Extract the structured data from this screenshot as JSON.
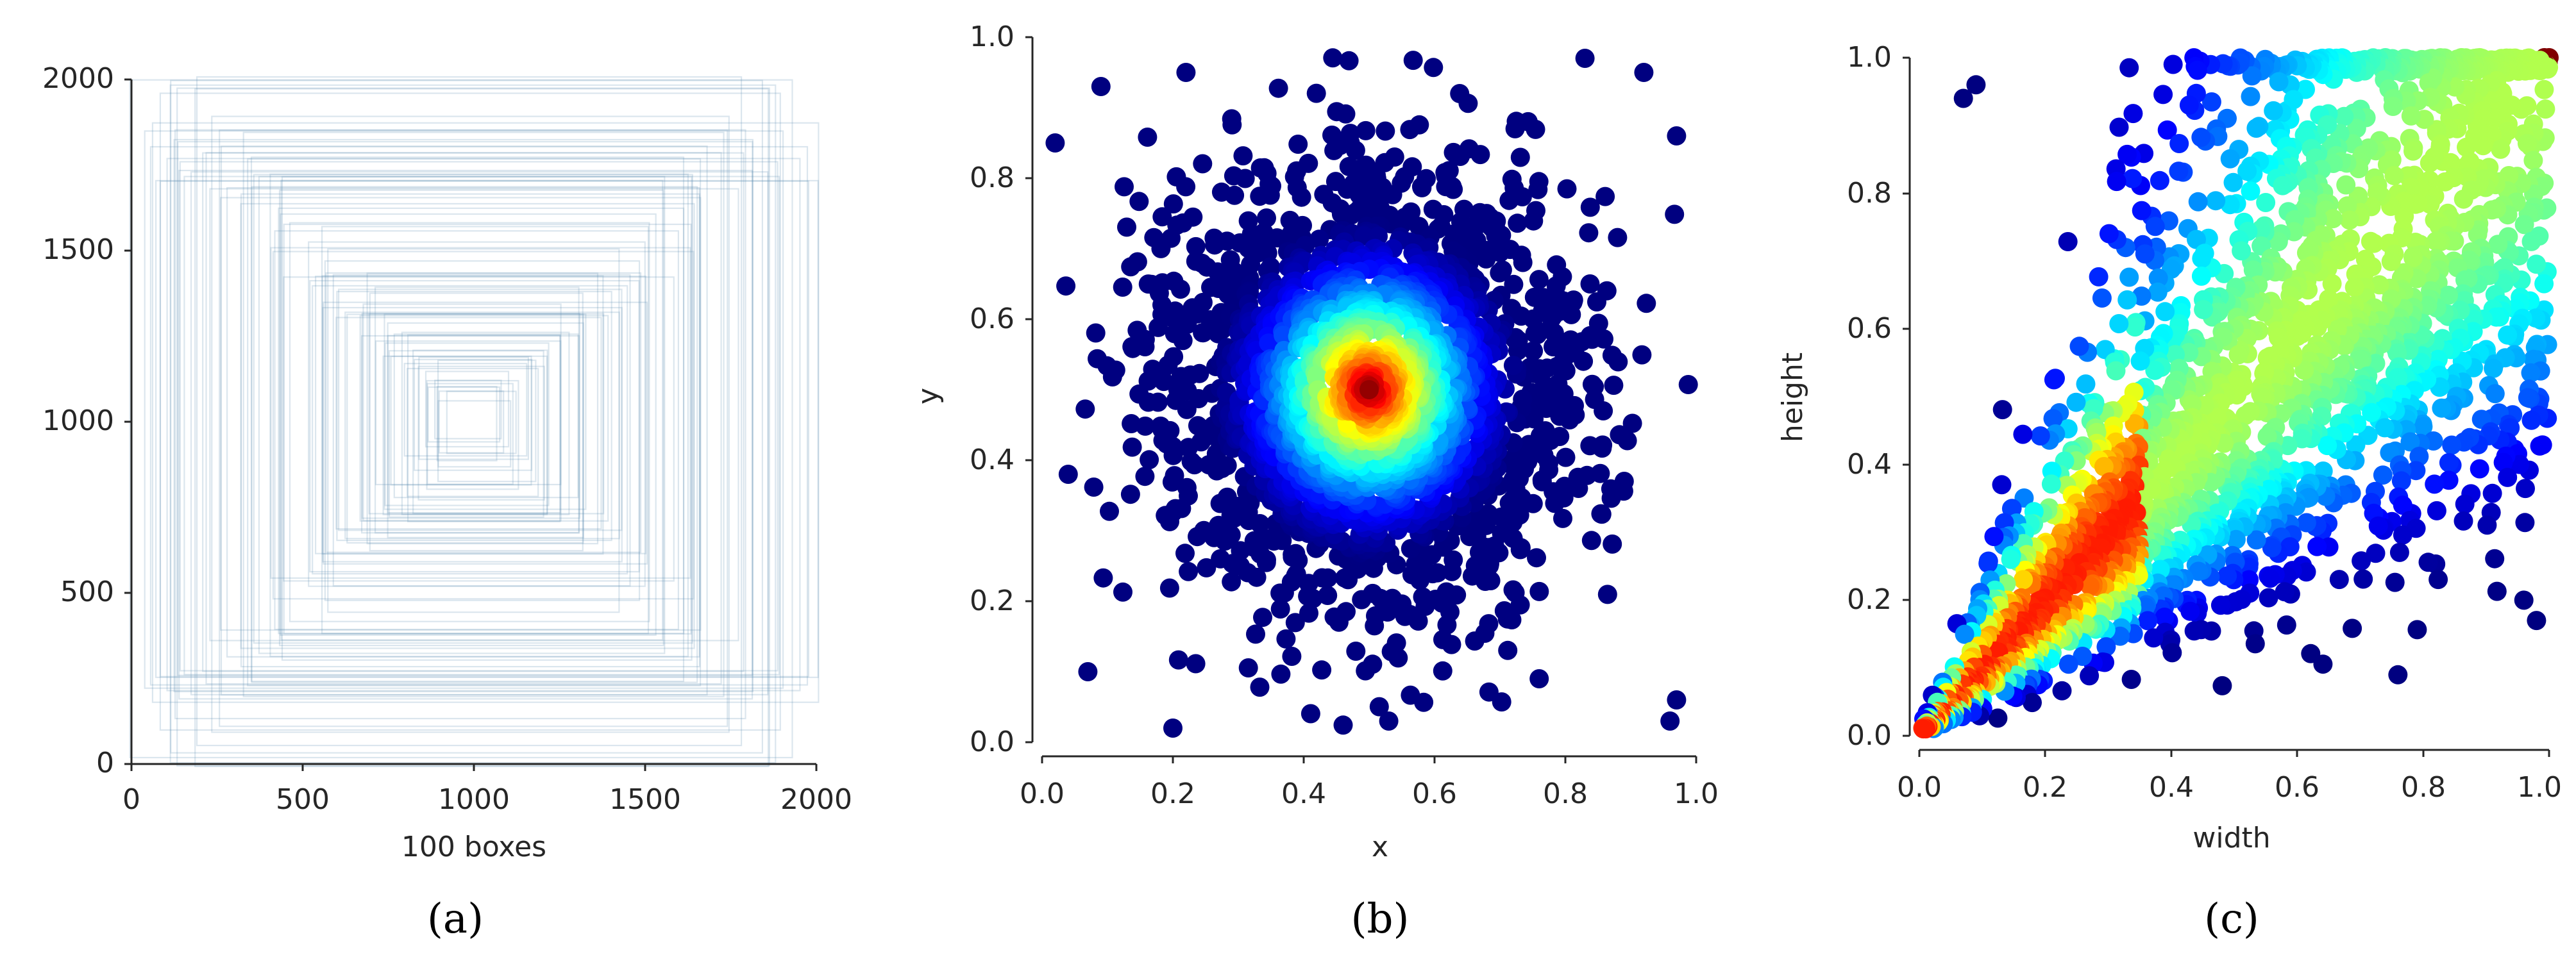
{
  "chart_data": [
    {
      "type": "boxes",
      "caption": "(a)",
      "xlabel": "100 boxes",
      "ylabel": "",
      "xlim": [
        0,
        2000
      ],
      "ylim": [
        0,
        2000
      ],
      "xticks": [
        "0",
        "500",
        "1000",
        "1500",
        "2000"
      ],
      "yticks": [
        "0",
        "500",
        "1000",
        "1500",
        "2000"
      ],
      "box_color": "#5b8fb3",
      "box_count": 100,
      "boxes_center": [
        1000,
        1000
      ],
      "boxes_half_size_range": [
        80,
        990
      ]
    },
    {
      "type": "scatter",
      "caption": "(b)",
      "xlabel": "x",
      "ylabel": "y",
      "xlim": [
        0,
        1
      ],
      "ylim": [
        0,
        1
      ],
      "xticks": [
        "0.0",
        "0.2",
        "0.4",
        "0.6",
        "0.8",
        "1.0"
      ],
      "yticks": [
        "0.0",
        "0.2",
        "0.4",
        "0.6",
        "0.8",
        "1.0"
      ],
      "colormap": "jet",
      "point_count": 2000,
      "center": [
        0.5,
        0.5
      ],
      "spread": 0.16,
      "points": [
        [
          0.2,
          0.02
        ],
        [
          0.02,
          0.85
        ],
        [
          0.09,
          0.93
        ],
        [
          0.22,
          0.95
        ],
        [
          0.97,
          0.86
        ],
        [
          0.97,
          0.06
        ],
        [
          0.96,
          0.03
        ],
        [
          0.04,
          0.38
        ],
        [
          0.07,
          0.1
        ],
        [
          0.53,
          0.03
        ],
        [
          0.92,
          0.95
        ],
        [
          0.83,
          0.97
        ],
        [
          0.76,
          0.09
        ],
        [
          0.82,
          0.36
        ],
        [
          0.89,
          0.37
        ],
        [
          0.5,
          0.5
        ],
        [
          0.48,
          0.52
        ],
        [
          0.52,
          0.49
        ],
        [
          0.46,
          0.47
        ],
        [
          0.55,
          0.55
        ]
      ]
    },
    {
      "type": "scatter",
      "caption": "(c)",
      "xlabel": "width",
      "ylabel": "height",
      "xlim": [
        0,
        1
      ],
      "ylim": [
        0,
        1
      ],
      "xticks": [
        "0.0",
        "0.2",
        "0.4",
        "0.6",
        "0.8",
        "1.0"
      ],
      "yticks": [
        "0.0",
        "0.2",
        "0.4",
        "0.6",
        "0.8",
        "1.0"
      ],
      "colormap": "jet",
      "point_count": 2400,
      "points": [
        [
          0.02,
          0.03
        ],
        [
          0.05,
          0.06
        ],
        [
          0.1,
          0.12
        ],
        [
          0.13,
          0.15
        ],
        [
          0.14,
          0.2
        ],
        [
          0.2,
          0.25
        ],
        [
          0.25,
          0.3
        ],
        [
          0.76,
          0.09
        ],
        [
          1.0,
          1.0
        ],
        [
          0.74,
          1.0
        ],
        [
          0.98,
          0.17
        ],
        [
          0.96,
          0.2
        ],
        [
          0.07,
          0.94
        ],
        [
          0.09,
          0.96
        ],
        [
          0.5,
          0.6
        ]
      ]
    }
  ]
}
